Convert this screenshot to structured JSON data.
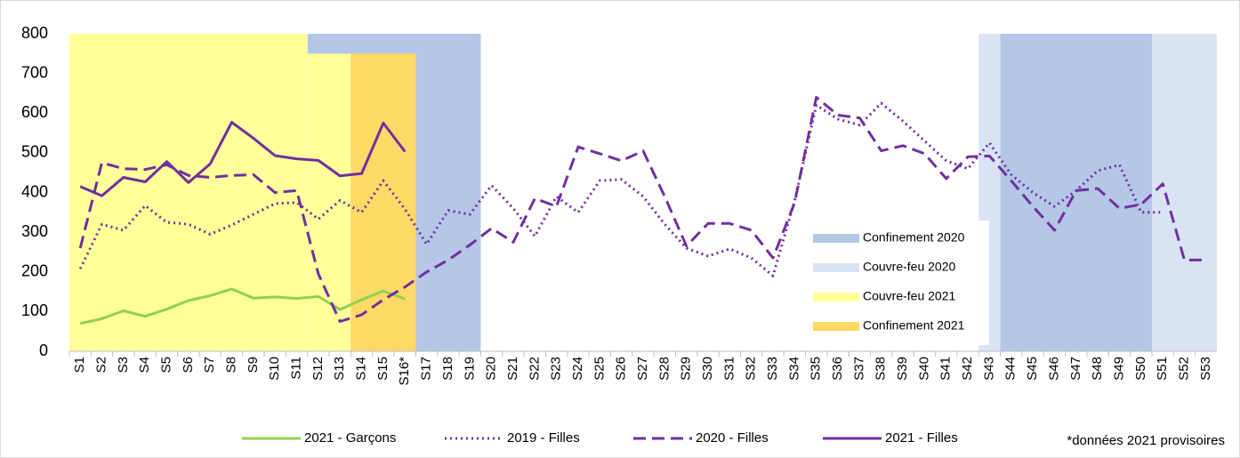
{
  "chart_data": {
    "type": "line",
    "categories": [
      "S1",
      "S2",
      "S3",
      "S4",
      "S5",
      "S6",
      "S7",
      "S8",
      "S9",
      "S10",
      "S11",
      "S12",
      "S13",
      "S14",
      "S15",
      "S16*",
      "S17",
      "S18",
      "S19",
      "S20",
      "S21",
      "S22",
      "S23",
      "S24",
      "S25",
      "S26",
      "S27",
      "S28",
      "S29",
      "S30",
      "S31",
      "S32",
      "S33",
      "S34",
      "S35",
      "S36",
      "S37",
      "S38",
      "S39",
      "S40",
      "S41",
      "S42",
      "S43",
      "S44",
      "S45",
      "S46",
      "S47",
      "S48",
      "S49",
      "S50",
      "S51",
      "S52",
      "S53"
    ],
    "ylim": [
      0,
      800
    ],
    "yticks": [
      0,
      100,
      200,
      300,
      400,
      500,
      600,
      700,
      800
    ],
    "series": [
      {
        "name": "2021 - Garçons",
        "color": "#92d050",
        "dash": "solid",
        "values": [
          70,
          82,
          102,
          88,
          106,
          128,
          140,
          157,
          134,
          137,
          133,
          138,
          105,
          130,
          152,
          132,
          null,
          null,
          null,
          null,
          null,
          null,
          null,
          null,
          null,
          null,
          null,
          null,
          null,
          null,
          null,
          null,
          null,
          null,
          null,
          null,
          null,
          null,
          null,
          null,
          null,
          null,
          null,
          null,
          null,
          null,
          null,
          null,
          null,
          null,
          null,
          null,
          null
        ]
      },
      {
        "name": "2019 - Filles",
        "color": "#7030a0",
        "dash": "dotted",
        "values": [
          208,
          320,
          305,
          367,
          325,
          320,
          295,
          318,
          345,
          372,
          375,
          333,
          380,
          350,
          430,
          358,
          270,
          355,
          345,
          418,
          360,
          290,
          390,
          350,
          430,
          433,
          390,
          320,
          260,
          240,
          258,
          235,
          190,
          380,
          620,
          585,
          570,
          625,
          580,
          530,
          480,
          460,
          525,
          445,
          400,
          365,
          405,
          455,
          470,
          350,
          350,
          null,
          null
        ]
      },
      {
        "name": "2020 - Filles",
        "color": "#7030a0",
        "dash": "dashed",
        "values": [
          260,
          475,
          460,
          458,
          470,
          443,
          438,
          443,
          445,
          400,
          405,
          195,
          75,
          92,
          130,
          162,
          200,
          230,
          268,
          310,
          275,
          385,
          365,
          515,
          498,
          480,
          505,
          390,
          265,
          322,
          322,
          305,
          235,
          375,
          640,
          595,
          588,
          505,
          518,
          498,
          435,
          490,
          492,
          430,
          365,
          305,
          405,
          410,
          360,
          370,
          422,
          230,
          230
        ]
      },
      {
        "name": "2021 - Filles",
        "color": "#7030a0",
        "dash": "solid",
        "values": [
          415,
          392,
          438,
          427,
          478,
          425,
          472,
          577,
          537,
          493,
          485,
          481,
          442,
          448,
          575,
          503,
          null,
          null,
          null,
          null,
          null,
          null,
          null,
          null,
          null,
          null,
          null,
          null,
          null,
          null,
          null,
          null,
          null,
          null,
          null,
          null,
          null,
          null,
          null,
          null,
          null,
          null,
          null,
          null,
          null,
          null,
          null,
          null,
          null,
          null,
          null,
          null,
          null
        ]
      }
    ],
    "regions": [
      {
        "name": "Confinement 2020",
        "color": "#b4c7e7",
        "spans": [
          {
            "start": "S12",
            "end": "S19",
            "top": 800
          },
          {
            "start": "S44",
            "end": "S50",
            "top": 800
          }
        ]
      },
      {
        "name": "Couvre-feu 2020",
        "color": "#dae3f3",
        "spans": [
          {
            "start": "S43",
            "end": "S43",
            "top": 800
          },
          {
            "start": "S51",
            "end": "S53",
            "top": 800
          }
        ]
      },
      {
        "name": "Couvre-feu 2021",
        "color": "#ffff99",
        "spans": [
          {
            "start": "S1",
            "end": "S11",
            "top": 800
          },
          {
            "start": "S12",
            "end": "S13",
            "top": 750
          }
        ]
      },
      {
        "name": "Confinement 2021",
        "color": "#ffd966",
        "spans": [
          {
            "start": "S14",
            "end": "S16*",
            "top": 750
          }
        ]
      }
    ],
    "note": "*données 2021 provisoires"
  }
}
